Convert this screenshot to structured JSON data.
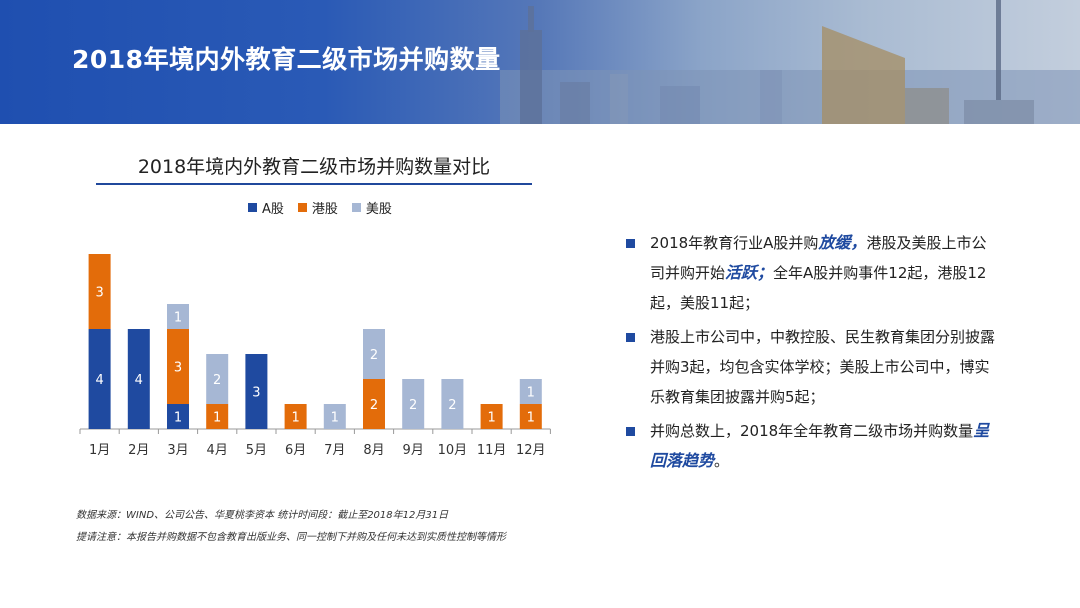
{
  "page_title": "2018年境内外教育二级市场并购数量",
  "chart_title": "2018年境内外教育二级市场并购数量对比",
  "legend": [
    {
      "label": "A股",
      "color": "#1f4aa0"
    },
    {
      "label": "港股",
      "color": "#e36c0a"
    },
    {
      "label": "美股",
      "color": "#a6b7d4"
    }
  ],
  "chart_data": {
    "type": "bar",
    "stacked": true,
    "title": "2018年境内外教育二级市场并购数量对比",
    "categories": [
      "1月",
      "2月",
      "3月",
      "4月",
      "5月",
      "6月",
      "7月",
      "8月",
      "9月",
      "10月",
      "11月",
      "12月"
    ],
    "series": [
      {
        "name": "A股",
        "color": "#1f4aa0",
        "values": [
          4,
          4,
          1,
          0,
          3,
          0,
          0,
          0,
          0,
          0,
          0,
          0
        ]
      },
      {
        "name": "港股",
        "color": "#e36c0a",
        "values": [
          3,
          0,
          3,
          1,
          0,
          1,
          0,
          2,
          0,
          0,
          1,
          1
        ]
      },
      {
        "name": "美股",
        "color": "#a6b7d4",
        "values": [
          0,
          0,
          1,
          2,
          0,
          0,
          1,
          2,
          2,
          2,
          0,
          1
        ]
      }
    ],
    "ylim": [
      0,
      7
    ],
    "legend_position": "top",
    "grid": false
  },
  "bullets": [
    {
      "parts": [
        {
          "text": "2018年教育行业A股并购",
          "em": false
        },
        {
          "text": "放缓，",
          "em": true
        },
        {
          "text": "港股及美股上市公司并购开始",
          "em": false
        },
        {
          "text": "活跃；",
          "em": true
        },
        {
          "text": "全年A股并购事件12起，港股12起，美股11起；",
          "em": false
        }
      ]
    },
    {
      "parts": [
        {
          "text": "港股上市公司中，中教控股、民生教育集团分别披露并购3起，均包含实体学校；美股上市公司中，博实乐教育集团披露并购5起；",
          "em": false
        }
      ]
    },
    {
      "parts": [
        {
          "text": "并购总数上，2018年全年教育二级市场并购数量",
          "em": false
        },
        {
          "text": "呈回落趋势",
          "em": true
        },
        {
          "text": "。",
          "em": false
        }
      ]
    }
  ],
  "footnotes": [
    "数据来源：WIND、公司公告、华夏桃李资本    统计时间段：截止至2018年12月31日",
    "提请注意：本报告并购数据不包含教育出版业务、同一控制下并购及任何未达到实质性控制等情形"
  ]
}
